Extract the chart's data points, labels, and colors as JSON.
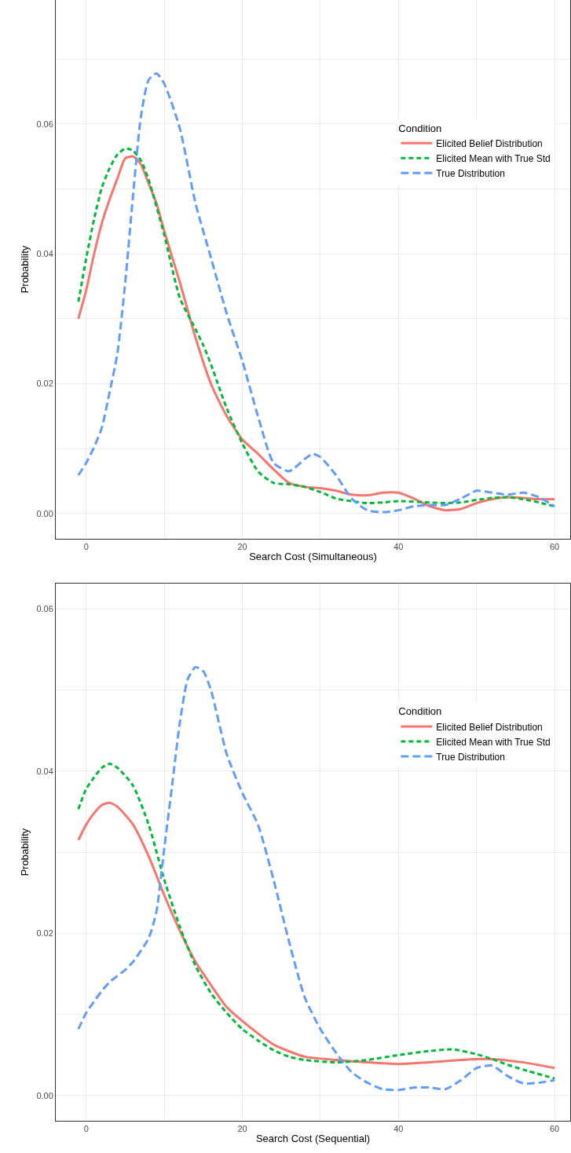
{
  "chart_data": [
    {
      "type": "line",
      "xlabel": "Search Cost (Simultaneous)",
      "ylabel": "Probability",
      "legend_title": "Condition",
      "legend": "top right",
      "grid": true,
      "xlim": [
        -3.9,
        62
      ],
      "ylim": [
        -0.0039,
        0.0791
      ],
      "xticks": [
        0,
        {
          "value": 10,
          "label": null
        },
        20,
        {
          "value": 30,
          "label": null
        },
        40,
        {
          "value": 50,
          "label": null
        },
        60
      ],
      "yticks": [
        {
          "value": 0,
          "label": "0.00"
        },
        {
          "value": 0.01,
          "label": null
        },
        {
          "value": 0.02,
          "label": "0.02"
        },
        {
          "value": 0.03,
          "label": null
        },
        {
          "value": 0.04,
          "label": "0.04"
        },
        {
          "value": 0.05,
          "label": null
        },
        {
          "value": 0.06,
          "label": "0.06"
        },
        {
          "value": 0.07,
          "label": null
        }
      ],
      "series": [
        {
          "name": "Elicited Belief Distribution",
          "color": "#f8766d",
          "line_style": "solid",
          "x": [
            -1,
            0,
            1,
            2,
            3,
            4,
            5,
            6,
            7,
            8,
            9,
            10,
            12,
            14,
            16,
            18,
            20,
            22,
            24,
            26,
            28,
            30,
            32,
            34,
            36,
            38,
            40,
            42,
            44,
            46,
            48,
            50,
            52,
            54,
            56,
            58,
            60
          ],
          "values": [
            0.03,
            0.0344,
            0.0399,
            0.0447,
            0.0484,
            0.0516,
            0.0547,
            0.055,
            0.0538,
            0.0508,
            0.0478,
            0.0435,
            0.0356,
            0.0271,
            0.0199,
            0.015,
            0.0114,
            0.0092,
            0.0068,
            0.0047,
            0.0041,
            0.0039,
            0.0035,
            0.0029,
            0.0028,
            0.0032,
            0.0032,
            0.0023,
            0.0011,
            0.0005,
            0.0007,
            0.0016,
            0.0022,
            0.0025,
            0.0024,
            0.0022,
            0.0022
          ]
        },
        {
          "name": "Elicited Mean with True Std",
          "color": "#00ba38",
          "line_style": "dotted",
          "x": [
            -1,
            0,
            1,
            2,
            3,
            4,
            5,
            6,
            7,
            8,
            10,
            12,
            14,
            15,
            16,
            18,
            20,
            22,
            24,
            26,
            28,
            30,
            32,
            34,
            36,
            38,
            40,
            44,
            46,
            48,
            50,
            52,
            54,
            56,
            58,
            60
          ],
          "values": [
            0.0326,
            0.0393,
            0.0453,
            0.0502,
            0.0532,
            0.0553,
            0.0562,
            0.0559,
            0.0544,
            0.0514,
            0.0429,
            0.0332,
            0.0284,
            0.0259,
            0.0229,
            0.0162,
            0.0108,
            0.0065,
            0.0047,
            0.0045,
            0.0041,
            0.0033,
            0.0023,
            0.0019,
            0.0016,
            0.0017,
            0.0019,
            0.0017,
            0.0016,
            0.0017,
            0.0021,
            0.0024,
            0.0025,
            0.0022,
            0.0017,
            0.0011
          ]
        },
        {
          "name": "True Distribution",
          "color": "#619cff",
          "line_style": "dashed",
          "x": [
            -1,
            0,
            1,
            2,
            3,
            4,
            5,
            6,
            7,
            8,
            9,
            10,
            12,
            14,
            16,
            18,
            20,
            22,
            24,
            26,
            28,
            29,
            30,
            32,
            34,
            36,
            38,
            40,
            42,
            44,
            46,
            48,
            50,
            52,
            54,
            56,
            58,
            60
          ],
          "values": [
            0.0059,
            0.0078,
            0.0102,
            0.0132,
            0.0187,
            0.0247,
            0.0356,
            0.049,
            0.0611,
            0.0668,
            0.0678,
            0.0662,
            0.0593,
            0.0478,
            0.0393,
            0.0308,
            0.0235,
            0.015,
            0.0078,
            0.0065,
            0.0084,
            0.0092,
            0.0087,
            0.0059,
            0.0023,
            0.0005,
            0.0002,
            0.0005,
            0.0011,
            0.0013,
            0.0013,
            0.0023,
            0.0035,
            0.0032,
            0.0029,
            0.0032,
            0.0025,
            0.0011
          ]
        }
      ]
    },
    {
      "type": "line",
      "xlabel": "Search Cost (Sequential)",
      "ylabel": "Probability",
      "legend_title": "Condition",
      "legend": "top right",
      "grid": true,
      "xlim": [
        -3.9,
        62
      ],
      "ylim": [
        -0.0031,
        0.0631
      ],
      "xticks": [
        0,
        {
          "value": 10,
          "label": null
        },
        20,
        {
          "value": 30,
          "label": null
        },
        40,
        {
          "value": 50,
          "label": null
        },
        60
      ],
      "yticks": [
        {
          "value": 0,
          "label": "0.00"
        },
        {
          "value": 0.01,
          "label": null
        },
        {
          "value": 0.02,
          "label": "0.02"
        },
        {
          "value": 0.03,
          "label": null
        },
        {
          "value": 0.04,
          "label": "0.04"
        },
        {
          "value": 0.05,
          "label": null
        },
        {
          "value": 0.06,
          "label": "0.06"
        }
      ],
      "series": [
        {
          "name": "Elicited Belief Distribution",
          "color": "#f8766d",
          "line_style": "solid",
          "x": [
            -1,
            0,
            1,
            2,
            3,
            4,
            6,
            8,
            10,
            12,
            14,
            16,
            18,
            20,
            24,
            28,
            32,
            36,
            40,
            44,
            48,
            50,
            52,
            56,
            60
          ],
          "values": [
            0.0315,
            0.0334,
            0.0348,
            0.0358,
            0.0361,
            0.0356,
            0.0334,
            0.0295,
            0.0247,
            0.0203,
            0.0165,
            0.0136,
            0.0109,
            0.0092,
            0.0063,
            0.0048,
            0.0044,
            0.0041,
            0.0039,
            0.0041,
            0.0044,
            0.0045,
            0.0045,
            0.0041,
            0.0034
          ]
        },
        {
          "name": "Elicited Mean with True Std",
          "color": "#00ba38",
          "line_style": "dotted",
          "x": [
            -1,
            0,
            1,
            2,
            3,
            4,
            6,
            8,
            10,
            12,
            14,
            16,
            18,
            20,
            22,
            24,
            26,
            28,
            32,
            36,
            40,
            44,
            47,
            50,
            52,
            54,
            56,
            60
          ],
          "values": [
            0.0353,
            0.0378,
            0.0392,
            0.0404,
            0.0409,
            0.0404,
            0.0382,
            0.0334,
            0.0266,
            0.0208,
            0.016,
            0.0126,
            0.0102,
            0.0082,
            0.0068,
            0.0056,
            0.0048,
            0.0044,
            0.0041,
            0.0044,
            0.005,
            0.0055,
            0.0057,
            0.0051,
            0.0045,
            0.0038,
            0.0032,
            0.0021
          ]
        },
        {
          "name": "True Distribution",
          "color": "#619cff",
          "line_style": "dashed",
          "x": [
            -1,
            0,
            1,
            2,
            3,
            5,
            6,
            8,
            9,
            10,
            11,
            12,
            13,
            14,
            15,
            16,
            18,
            20,
            22,
            24,
            26,
            28,
            30,
            32,
            34,
            36,
            38,
            40,
            42,
            44,
            46,
            48,
            50,
            52,
            54,
            56,
            58,
            60
          ],
          "values": [
            0.0082,
            0.0102,
            0.0116,
            0.0129,
            0.014,
            0.0155,
            0.0165,
            0.0194,
            0.0227,
            0.0305,
            0.0382,
            0.046,
            0.0513,
            0.0528,
            0.0523,
            0.0499,
            0.0421,
            0.0373,
            0.0334,
            0.0266,
            0.0189,
            0.0121,
            0.0082,
            0.0053,
            0.0029,
            0.0016,
            0.0008,
            0.0007,
            0.001,
            0.001,
            0.0008,
            0.0019,
            0.0034,
            0.0037,
            0.0024,
            0.0015,
            0.0016,
            0.0019
          ]
        }
      ]
    }
  ]
}
